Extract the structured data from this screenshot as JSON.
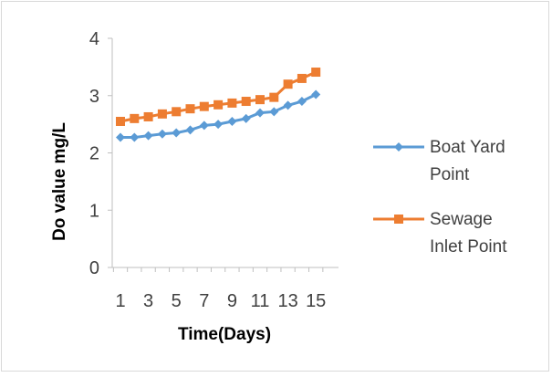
{
  "chart_data": {
    "type": "line",
    "title": "",
    "xlabel": "Time(Days)",
    "ylabel": "Do value mg/L",
    "x": [
      1,
      2,
      3,
      4,
      5,
      6,
      7,
      8,
      9,
      10,
      11,
      12,
      13,
      14,
      15
    ],
    "x_tick_labels": [
      "1",
      "3",
      "5",
      "7",
      "9",
      "11",
      "13",
      "15"
    ],
    "y_tick_labels": [
      "0",
      "1",
      "2",
      "3",
      "4"
    ],
    "ylim": [
      0,
      4
    ],
    "grid": false,
    "legend_position": "right",
    "series": [
      {
        "name": "Boat Yard Point",
        "legend_lines": [
          "Boat Yard",
          "Point"
        ],
        "marker": "diamond",
        "color": "#5b9bd5",
        "values": [
          2.27,
          2.27,
          2.3,
          2.33,
          2.35,
          2.4,
          2.48,
          2.5,
          2.55,
          2.6,
          2.7,
          2.72,
          2.83,
          2.9,
          3.02
        ]
      },
      {
        "name": "Sewage Inlet Point",
        "legend_lines": [
          "Sewage",
          "Inlet Point"
        ],
        "marker": "square",
        "color": "#ed7d31",
        "values": [
          2.55,
          2.6,
          2.63,
          2.68,
          2.72,
          2.77,
          2.81,
          2.84,
          2.87,
          2.9,
          2.93,
          2.97,
          3.2,
          3.3,
          3.41
        ]
      }
    ]
  }
}
